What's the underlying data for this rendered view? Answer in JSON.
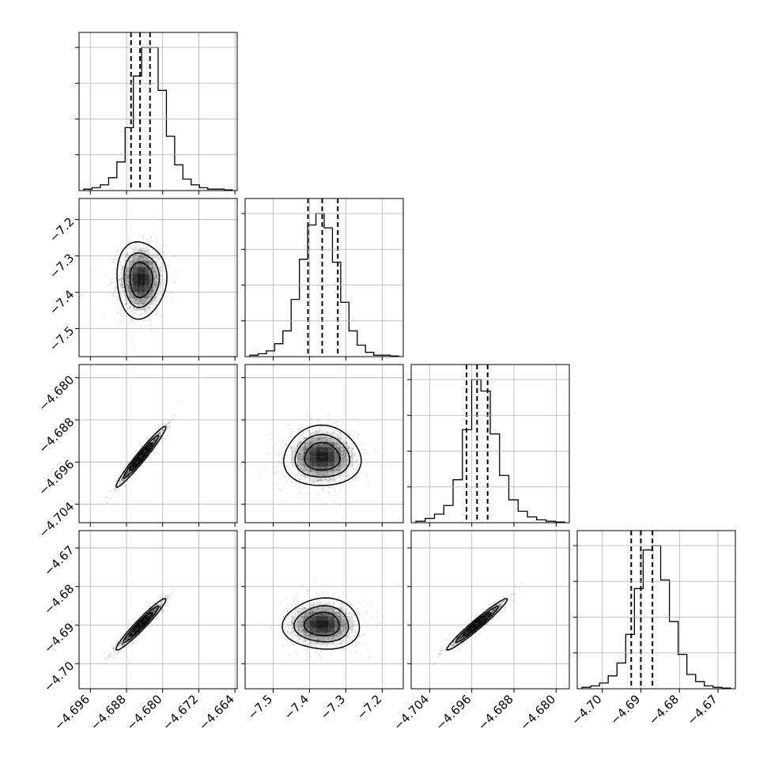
{
  "chart_data": {
    "type": "corner",
    "n_params": 4,
    "style": {
      "grid": true,
      "line_color": "#000000",
      "grid_color": "#b0b0b0",
      "point_color": "#000000"
    },
    "params": [
      {
        "range": [
          -4.6985,
          -4.6635
        ],
        "ticks": [
          -4.696,
          -4.688,
          -4.68,
          -4.672,
          -4.664
        ],
        "tick_labels": [
          "−4.696",
          "−4.688",
          "−4.680",
          "−4.672",
          "−4.664"
        ],
        "quantiles": [
          -4.687,
          -4.685,
          -4.6828
        ],
        "hist": [
          1,
          2,
          4,
          9,
          20,
          44,
          80,
          100,
          100,
          70,
          38,
          18,
          8,
          4,
          2,
          1,
          1,
          0.5
        ]
      },
      {
        "range": [
          -7.577,
          -7.142
        ],
        "ticks": [
          -7.5,
          -7.4,
          -7.3,
          -7.2
        ],
        "tick_labels": [
          "−7.5",
          "−7.4",
          "−7.3",
          "−7.2"
        ],
        "quantiles": [
          -7.404,
          -7.365,
          -7.322
        ],
        "hist": [
          1,
          2,
          4,
          9,
          18,
          40,
          68,
          92,
          100,
          90,
          66,
          38,
          18,
          8,
          3,
          1,
          1,
          0.5
        ]
      },
      {
        "range": [
          -4.7075,
          -4.6775
        ],
        "ticks": [
          -4.704,
          -4.696,
          -4.688,
          -4.68
        ],
        "tick_labels": [
          "−4.704",
          "−4.696",
          "−4.688",
          "−4.680"
        ],
        "quantiles": [
          -4.697,
          -4.695,
          -4.693
        ],
        "hist": [
          1,
          3,
          6,
          12,
          30,
          65,
          100,
          92,
          62,
          33,
          16,
          8,
          4,
          2,
          1,
          0.5
        ]
      },
      {
        "range": [
          -4.7065,
          -4.6655
        ],
        "ticks": [
          -4.7,
          -4.69,
          -4.68,
          -4.67
        ],
        "tick_labels": [
          "−4.70",
          "−4.69",
          "−4.68",
          "−4.67"
        ],
        "quantiles": [
          -4.6925,
          -4.69,
          -4.687
        ],
        "hist": [
          1,
          2,
          4,
          9,
          18,
          38,
          70,
          97,
          100,
          76,
          47,
          24,
          10,
          5,
          2,
          1,
          0.5
        ]
      }
    ],
    "pairs": [
      {
        "x_param": 0,
        "y_param": 1,
        "center": [
          -4.6848,
          -7.365
        ],
        "sd": [
          0.0025,
          0.048
        ],
        "rho": 0.0
      },
      {
        "x_param": 0,
        "y_param": 2,
        "center": [
          -4.6848,
          -4.695
        ],
        "sd": [
          0.0025,
          0.0026
        ],
        "rho": 0.97
      },
      {
        "x_param": 1,
        "y_param": 2,
        "center": [
          -7.365,
          -4.695
        ],
        "sd": [
          0.048,
          0.0026
        ],
        "rho": 0.0
      },
      {
        "x_param": 0,
        "y_param": 3,
        "center": [
          -4.6848,
          -4.6898
        ],
        "sd": [
          0.0025,
          0.003
        ],
        "rho": 0.96
      },
      {
        "x_param": 1,
        "y_param": 3,
        "center": [
          -7.365,
          -4.6898
        ],
        "sd": [
          0.048,
          0.003
        ],
        "rho": 0.0
      },
      {
        "x_param": 2,
        "y_param": 3,
        "center": [
          -4.695,
          -4.6898
        ],
        "sd": [
          0.0026,
          0.003
        ],
        "rho": 0.97
      }
    ]
  }
}
